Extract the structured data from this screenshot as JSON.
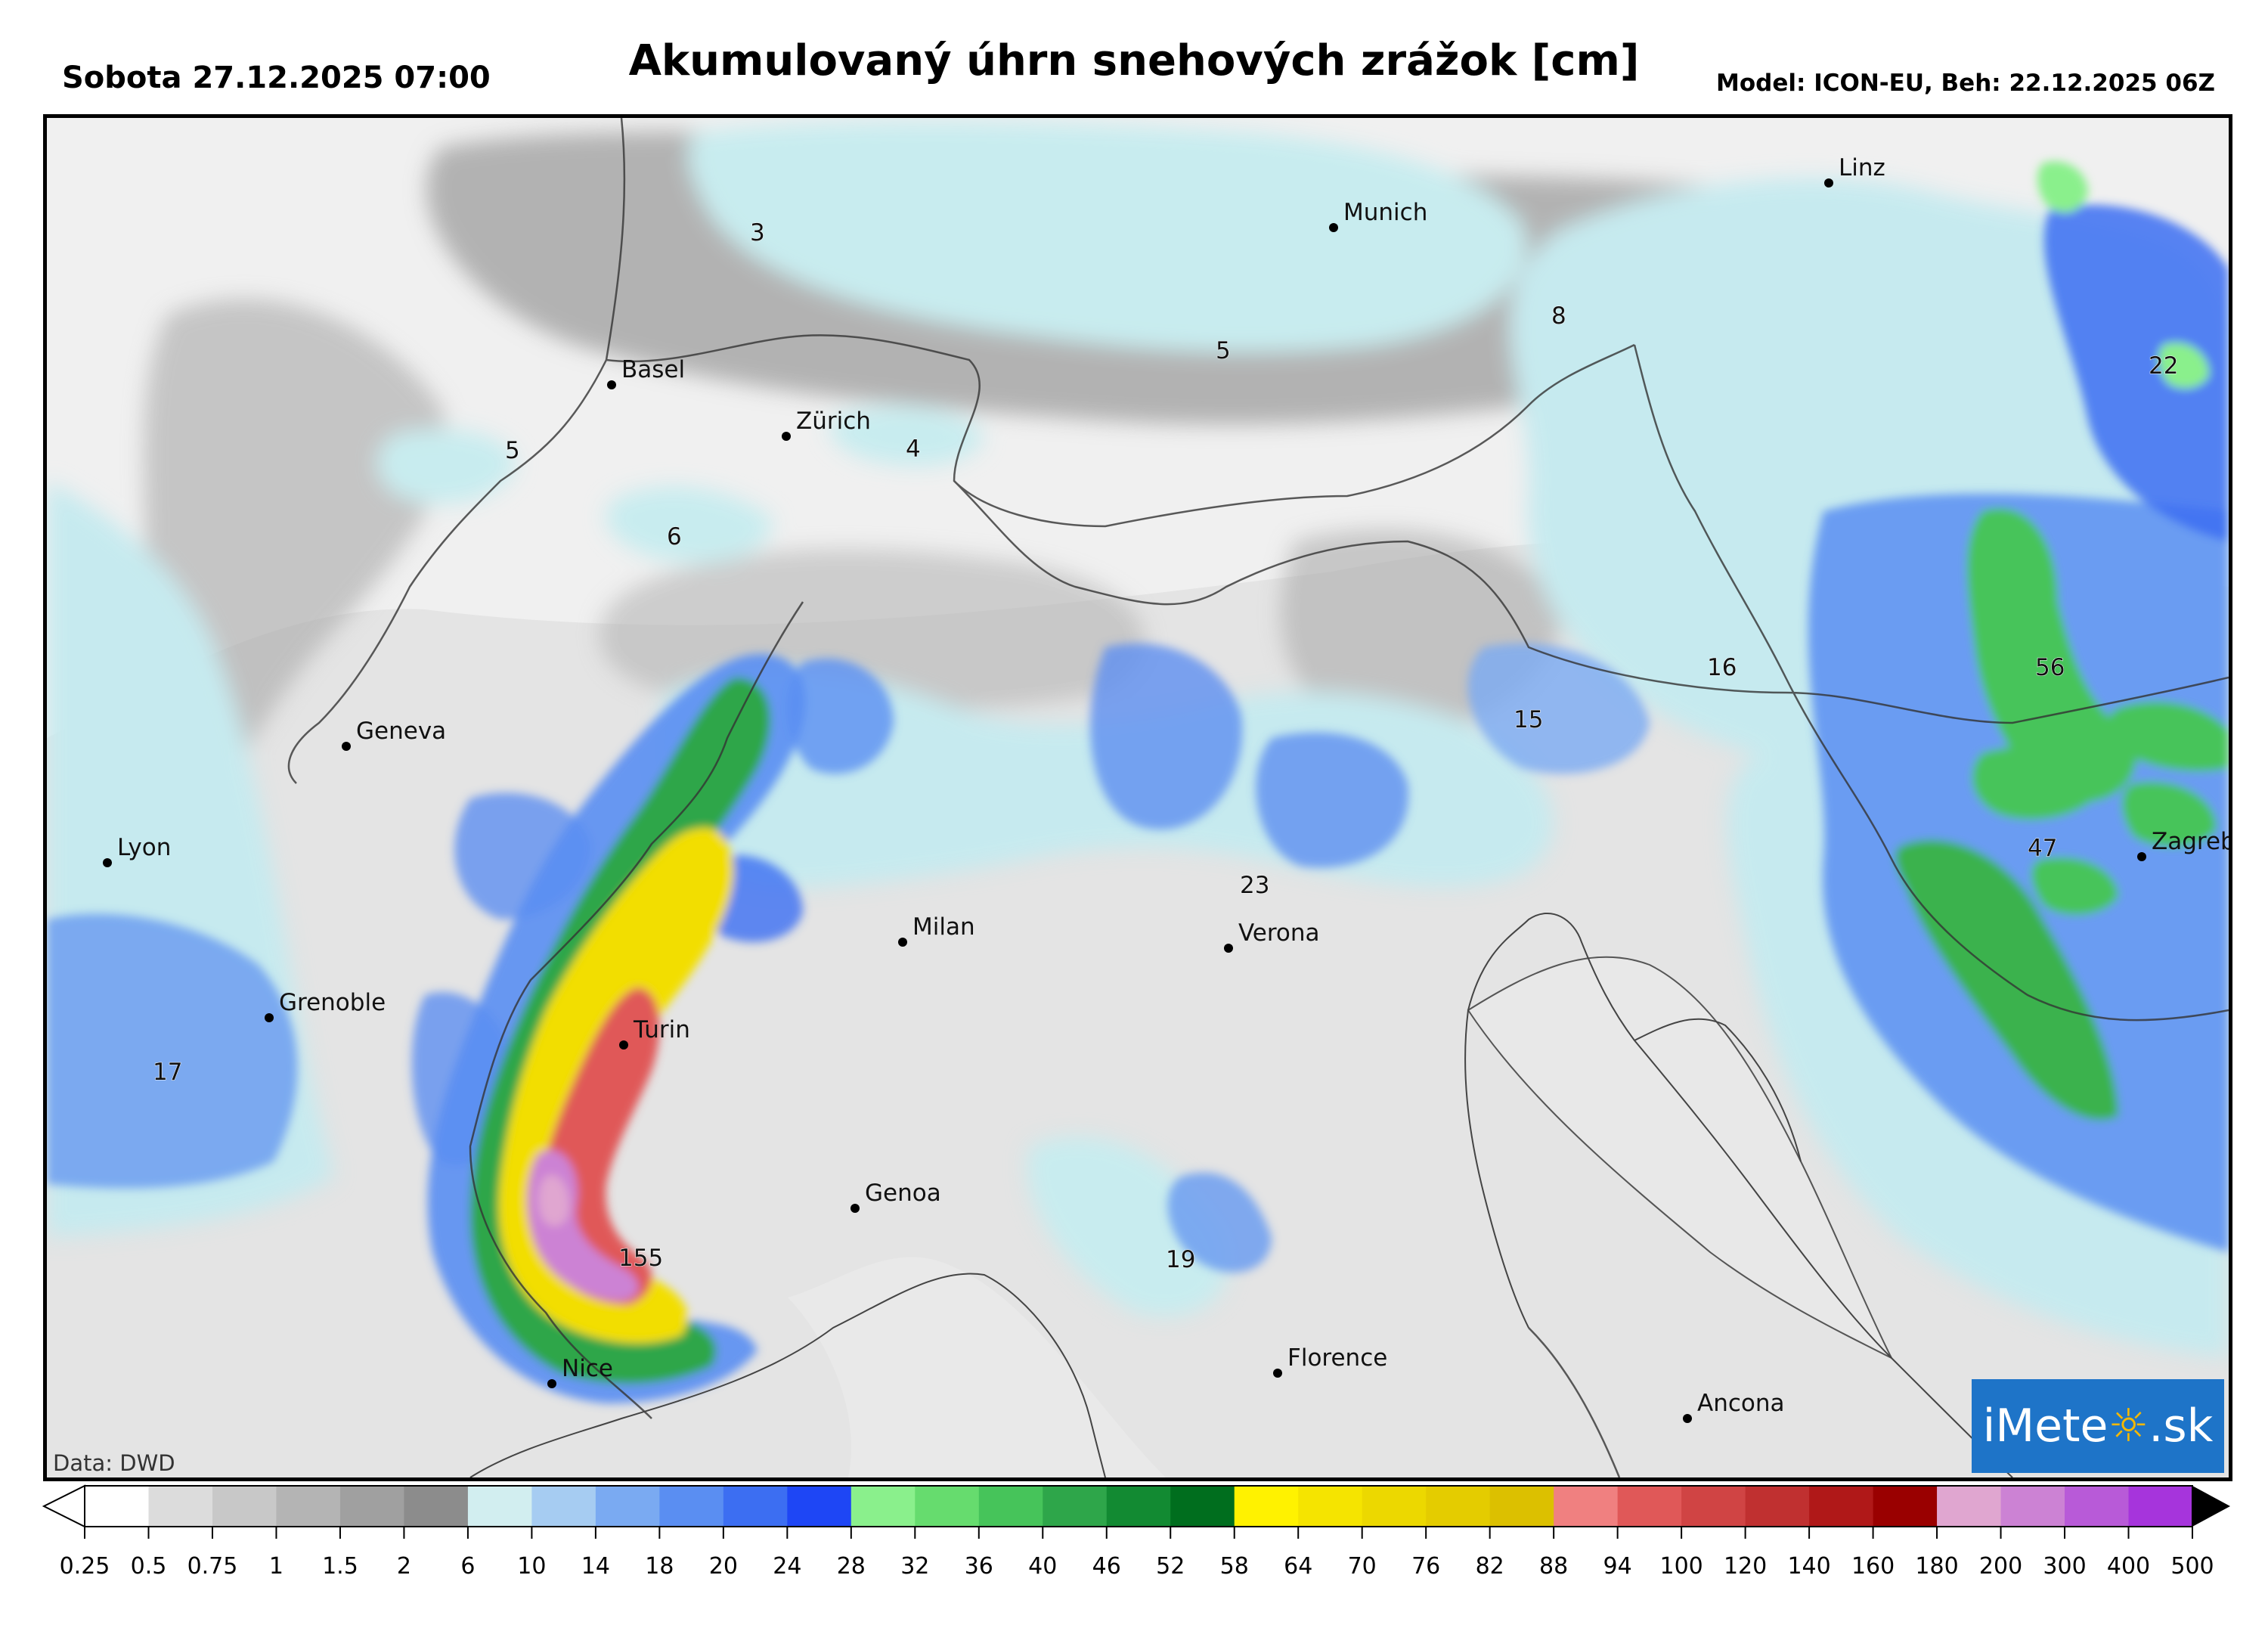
{
  "header": {
    "title": "Akumulovaný úhrn snehových zrážok [cm]",
    "date": "Sobota 27.12.2025 07:00",
    "model": "Model: ICON-EU, Beh: 22.12.2025 06Z"
  },
  "cities": [
    {
      "name": "Linz"
    },
    {
      "name": "Munich"
    },
    {
      "name": "Basel"
    },
    {
      "name": "Zürich"
    },
    {
      "name": "Geneva"
    },
    {
      "name": "Lyon"
    },
    {
      "name": "Grenoble"
    },
    {
      "name": "Turin"
    },
    {
      "name": "Milan"
    },
    {
      "name": "Verona"
    },
    {
      "name": "Genoa"
    },
    {
      "name": "Nice"
    },
    {
      "name": "Florence"
    },
    {
      "name": "Ancona"
    },
    {
      "name": "Zagreb"
    }
  ],
  "accumulation_labels": [
    "3",
    "5",
    "8",
    "22",
    "5",
    "4",
    "6",
    "16",
    "15",
    "56",
    "47",
    "23",
    "17",
    "155",
    "19"
  ],
  "legend": {
    "ticks": [
      "0.25",
      "0.5",
      "0.75",
      "1",
      "1.5",
      "2",
      "6",
      "10",
      "14",
      "18",
      "20",
      "24",
      "28",
      "32",
      "36",
      "40",
      "46",
      "52",
      "58",
      "64",
      "70",
      "76",
      "82",
      "88",
      "94",
      "100",
      "120",
      "140",
      "160",
      "180",
      "200",
      "300",
      "400",
      "500"
    ],
    "colors": [
      "#ffffff",
      "#dcdcdc",
      "#c8c8c8",
      "#b4b4b4",
      "#a0a0a0",
      "#8c8c8c",
      "#d2eef0",
      "#a6ccf2",
      "#7aaaf2",
      "#5a8ef2",
      "#3c6ef2",
      "#1e46f5",
      "#8af08c",
      "#66dc6e",
      "#46c45a",
      "#2ea64a",
      "#128a32",
      "#006e1e",
      "#fff200",
      "#f5e400",
      "#ecd800",
      "#e4cc00",
      "#dcc000",
      "#f08080",
      "#e05858",
      "#d04444",
      "#c03030",
      "#b01818",
      "#9a0000",
      "#e0a6d0",
      "#cc82d4",
      "#b85ad8",
      "#a634dc",
      "#9416e0",
      "#7a1e78",
      "#5e2a5e",
      "#3e2a3e",
      "#1e1e1e"
    ],
    "under_color": "#ffffff",
    "over_color": "#000000"
  },
  "credit": "Data: DWD",
  "logo": {
    "pre": "iMete",
    "post": ".sk"
  }
}
